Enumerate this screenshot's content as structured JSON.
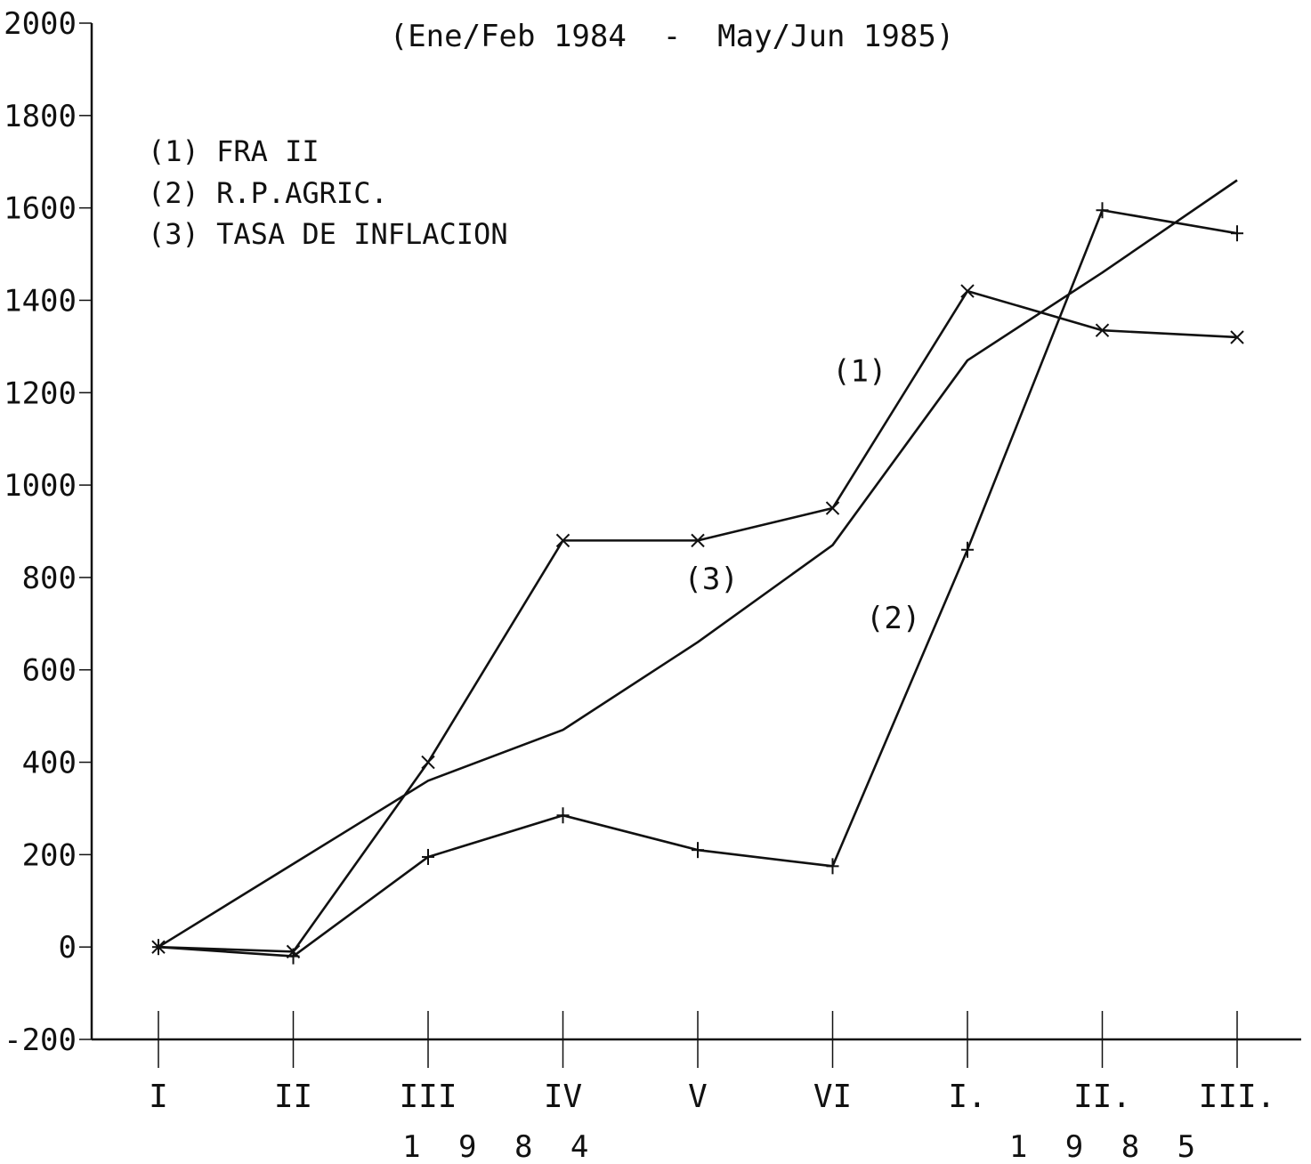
{
  "chart_data": {
    "type": "line",
    "title": "(Ene/Feb 1984  -  May/Jun 1985)",
    "xlabel": "",
    "ylabel": "",
    "ylim": [
      -200,
      2000
    ],
    "yticks": [
      "2000",
      "1800",
      "1600",
      "1400",
      "1200",
      "1000",
      "800",
      "600",
      "400",
      "200",
      "0",
      "-200"
    ],
    "ytick_values": [
      2000,
      1800,
      1600,
      1400,
      1200,
      1000,
      800,
      600,
      400,
      200,
      0,
      -200
    ],
    "categories": [
      "I",
      "II",
      "III",
      "IV",
      "V",
      "VI",
      "I.",
      "II.",
      "III."
    ],
    "year_groups": [
      {
        "label": "1 9 8 4",
        "from": 2,
        "to": 3
      },
      {
        "label": "1 9 8 5",
        "from": 6.4,
        "to": 7.6
      }
    ],
    "legend": [
      "(1) FRA II",
      "(2) R.P.AGRIC.",
      "(3) TASA DE INFLACION"
    ],
    "legend_position": "top-left",
    "grid": false,
    "series": [
      {
        "name": "(1) FRA II",
        "label": "(1)",
        "label_at": [
          5.2,
          1225
        ],
        "marker": "x",
        "values": [
          0,
          -10,
          400,
          880,
          880,
          950,
          1420,
          1335,
          1320
        ]
      },
      {
        "name": "(2) R.P.AGRIC.",
        "label": "(2)",
        "label_at": [
          5.45,
          690
        ],
        "marker": "+",
        "values": [
          0,
          -20,
          195,
          285,
          210,
          175,
          860,
          1595,
          1545
        ]
      },
      {
        "name": "(3) TASA DE INFLACION",
        "label": "(3)",
        "label_at": [
          4.1,
          775
        ],
        "marker": "none",
        "values": [
          0,
          180,
          360,
          470,
          660,
          870,
          1270,
          1460,
          1660
        ]
      }
    ]
  }
}
